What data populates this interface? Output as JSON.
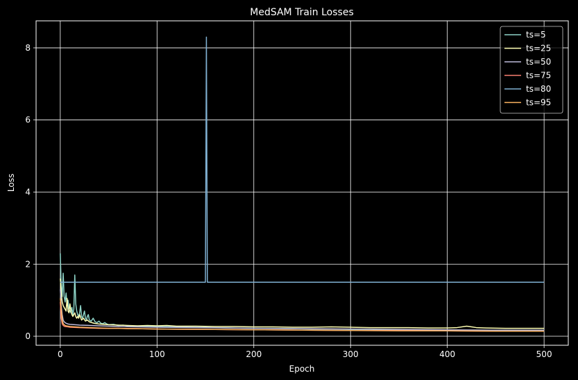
{
  "chart_data": {
    "type": "line",
    "title": "MedSAM Train Losses",
    "xlabel": "Epoch",
    "ylabel": "Loss",
    "xlim": [
      -25,
      525
    ],
    "ylim": [
      -0.25,
      8.75
    ],
    "xticks": [
      0,
      100,
      200,
      300,
      400,
      500
    ],
    "yticks": [
      0,
      2,
      4,
      6,
      8
    ],
    "grid": true,
    "legend_position": "top-right",
    "background": "#000000",
    "series": [
      {
        "name": "ts=5",
        "color": "#8dd3c7",
        "points": [
          [
            0,
            2.3
          ],
          [
            1,
            1.4
          ],
          [
            2,
            1.1
          ],
          [
            3,
            1.75
          ],
          [
            4,
            1.1
          ],
          [
            5,
            0.95
          ],
          [
            6,
            1.2
          ],
          [
            7,
            0.85
          ],
          [
            8,
            1.0
          ],
          [
            9,
            0.75
          ],
          [
            10,
            0.7
          ],
          [
            11,
            0.65
          ],
          [
            12,
            0.8
          ],
          [
            13,
            0.6
          ],
          [
            14,
            0.75
          ],
          [
            15,
            1.7
          ],
          [
            16,
            0.9
          ],
          [
            17,
            0.7
          ],
          [
            18,
            0.6
          ],
          [
            19,
            0.55
          ],
          [
            20,
            0.65
          ],
          [
            21,
            0.85
          ],
          [
            22,
            0.55
          ],
          [
            23,
            0.5
          ],
          [
            24,
            0.6
          ],
          [
            25,
            0.7
          ],
          [
            26,
            0.5
          ],
          [
            27,
            0.45
          ],
          [
            28,
            0.55
          ],
          [
            29,
            0.6
          ],
          [
            30,
            0.45
          ],
          [
            32,
            0.42
          ],
          [
            34,
            0.5
          ],
          [
            36,
            0.4
          ],
          [
            38,
            0.38
          ],
          [
            40,
            0.42
          ],
          [
            42,
            0.36
          ],
          [
            44,
            0.35
          ],
          [
            46,
            0.38
          ],
          [
            48,
            0.34
          ],
          [
            50,
            0.32
          ],
          [
            55,
            0.33
          ],
          [
            60,
            0.3
          ],
          [
            65,
            0.31
          ],
          [
            70,
            0.29
          ],
          [
            80,
            0.28
          ],
          [
            90,
            0.28
          ],
          [
            100,
            0.27
          ],
          [
            120,
            0.26
          ],
          [
            140,
            0.25
          ],
          [
            160,
            0.24
          ],
          [
            180,
            0.23
          ],
          [
            200,
            0.22
          ],
          [
            220,
            0.22
          ],
          [
            240,
            0.21
          ],
          [
            260,
            0.2
          ],
          [
            280,
            0.2
          ],
          [
            300,
            0.19
          ],
          [
            320,
            0.19
          ],
          [
            340,
            0.18
          ],
          [
            360,
            0.18
          ],
          [
            380,
            0.18
          ],
          [
            400,
            0.17
          ],
          [
            420,
            0.17
          ],
          [
            440,
            0.17
          ],
          [
            460,
            0.16
          ],
          [
            480,
            0.16
          ],
          [
            500,
            0.16
          ]
        ]
      },
      {
        "name": "ts=25",
        "color": "#ffffb3",
        "points": [
          [
            0,
            1.6
          ],
          [
            1,
            1.2
          ],
          [
            2,
            0.95
          ],
          [
            3,
            0.85
          ],
          [
            4,
            0.8
          ],
          [
            5,
            0.75
          ],
          [
            6,
            0.7
          ],
          [
            7,
            1.05
          ],
          [
            8,
            0.7
          ],
          [
            9,
            0.65
          ],
          [
            10,
            0.9
          ],
          [
            11,
            0.7
          ],
          [
            12,
            0.6
          ],
          [
            13,
            0.55
          ],
          [
            14,
            0.6
          ],
          [
            15,
            0.65
          ],
          [
            16,
            0.55
          ],
          [
            17,
            0.5
          ],
          [
            18,
            0.55
          ],
          [
            19,
            0.5
          ],
          [
            20,
            0.6
          ],
          [
            22,
            0.45
          ],
          [
            24,
            0.5
          ],
          [
            26,
            0.42
          ],
          [
            28,
            0.45
          ],
          [
            30,
            0.4
          ],
          [
            35,
            0.36
          ],
          [
            40,
            0.34
          ],
          [
            45,
            0.33
          ],
          [
            50,
            0.32
          ],
          [
            60,
            0.31
          ],
          [
            70,
            0.3
          ],
          [
            80,
            0.29
          ],
          [
            90,
            0.3
          ],
          [
            100,
            0.29
          ],
          [
            110,
            0.3
          ],
          [
            120,
            0.28
          ],
          [
            140,
            0.28
          ],
          [
            160,
            0.27
          ],
          [
            180,
            0.27
          ],
          [
            200,
            0.26
          ],
          [
            220,
            0.26
          ],
          [
            240,
            0.25
          ],
          [
            260,
            0.25
          ],
          [
            280,
            0.26
          ],
          [
            300,
            0.25
          ],
          [
            320,
            0.24
          ],
          [
            340,
            0.24
          ],
          [
            360,
            0.24
          ],
          [
            380,
            0.23
          ],
          [
            400,
            0.23
          ],
          [
            410,
            0.24
          ],
          [
            420,
            0.28
          ],
          [
            425,
            0.26
          ],
          [
            430,
            0.24
          ],
          [
            440,
            0.23
          ],
          [
            460,
            0.22
          ],
          [
            480,
            0.22
          ],
          [
            500,
            0.22
          ]
        ]
      },
      {
        "name": "ts=50",
        "color": "#bebada",
        "points": [
          [
            0,
            1.3
          ],
          [
            1,
            0.85
          ],
          [
            2,
            0.6
          ],
          [
            3,
            0.45
          ],
          [
            4,
            0.4
          ],
          [
            5,
            0.38
          ],
          [
            6,
            0.36
          ],
          [
            8,
            0.34
          ],
          [
            10,
            0.33
          ],
          [
            15,
            0.32
          ],
          [
            20,
            0.31
          ],
          [
            30,
            0.3
          ],
          [
            40,
            0.29
          ],
          [
            50,
            0.28
          ],
          [
            60,
            0.27
          ],
          [
            80,
            0.26
          ],
          [
            100,
            0.25
          ],
          [
            150,
            0.24
          ],
          [
            200,
            0.22
          ],
          [
            250,
            0.21
          ],
          [
            300,
            0.2
          ],
          [
            350,
            0.19
          ],
          [
            400,
            0.18
          ],
          [
            450,
            0.17
          ],
          [
            500,
            0.17
          ]
        ]
      },
      {
        "name": "ts=75",
        "color": "#fb8072",
        "points": [
          [
            0,
            0.95
          ],
          [
            1,
            0.5
          ],
          [
            2,
            0.35
          ],
          [
            3,
            0.3
          ],
          [
            4,
            0.28
          ],
          [
            5,
            0.27
          ],
          [
            8,
            0.26
          ],
          [
            10,
            0.25
          ],
          [
            20,
            0.24
          ],
          [
            30,
            0.23
          ],
          [
            40,
            0.22
          ],
          [
            50,
            0.22
          ],
          [
            60,
            0.22
          ],
          [
            80,
            0.21
          ],
          [
            100,
            0.2
          ],
          [
            150,
            0.19
          ],
          [
            200,
            0.18
          ],
          [
            250,
            0.17
          ],
          [
            300,
            0.16
          ],
          [
            350,
            0.16
          ],
          [
            400,
            0.15
          ],
          [
            450,
            0.14
          ],
          [
            500,
            0.14
          ]
        ]
      },
      {
        "name": "ts=80",
        "color": "#80b1d3",
        "points": [
          [
            0,
            1.5
          ],
          [
            1,
            1.5
          ],
          [
            50,
            1.5
          ],
          [
            100,
            1.5
          ],
          [
            150,
            1.5
          ],
          [
            151,
            8.3
          ],
          [
            152,
            1.5
          ],
          [
            200,
            1.5
          ],
          [
            250,
            1.5
          ],
          [
            300,
            1.5
          ],
          [
            350,
            1.5
          ],
          [
            400,
            1.5
          ],
          [
            450,
            1.5
          ],
          [
            500,
            1.5
          ]
        ]
      },
      {
        "name": "ts=95",
        "color": "#fdb462",
        "points": [
          [
            0,
            1.05
          ],
          [
            1,
            0.75
          ],
          [
            2,
            0.45
          ],
          [
            3,
            0.35
          ],
          [
            4,
            0.32
          ],
          [
            5,
            0.3
          ],
          [
            6,
            0.29
          ],
          [
            8,
            0.28
          ],
          [
            10,
            0.27
          ],
          [
            15,
            0.26
          ],
          [
            20,
            0.25
          ],
          [
            30,
            0.24
          ],
          [
            40,
            0.23
          ],
          [
            50,
            0.22
          ],
          [
            60,
            0.22
          ],
          [
            70,
            0.21
          ],
          [
            80,
            0.21
          ],
          [
            100,
            0.2
          ],
          [
            150,
            0.19
          ],
          [
            200,
            0.18
          ],
          [
            250,
            0.17
          ],
          [
            300,
            0.16
          ],
          [
            350,
            0.15
          ],
          [
            400,
            0.15
          ],
          [
            450,
            0.14
          ],
          [
            500,
            0.14
          ]
        ]
      }
    ]
  }
}
